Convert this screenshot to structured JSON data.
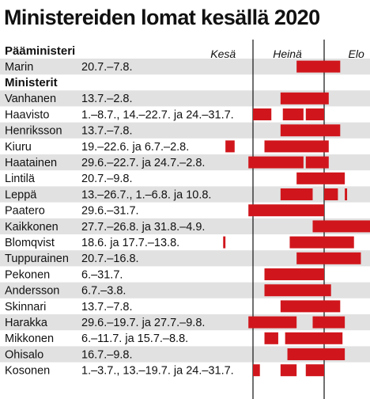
{
  "chart_data": {
    "type": "gantt",
    "title": "Ministereiden lomat kesällä 2020",
    "x_unit": "date",
    "x_range": [
      "2020-06-01",
      "2020-09-10"
    ],
    "month_labels": [
      {
        "label": "Kesä",
        "date": "2020-06-18"
      },
      {
        "label": "Heinä",
        "date": "2020-07-16"
      },
      {
        "label": "Elo",
        "date": "2020-08-15"
      }
    ],
    "month_boundaries": [
      "2020-07-01",
      "2020-08-01",
      "2020-09-01"
    ],
    "accent_color": "#d0161c",
    "row_shade_color": "#e1e1e1",
    "groups": [
      {
        "heading": "Pääministeri",
        "rows": [
          {
            "name": "Marin",
            "dates_text": "20.7.–7.8.",
            "shaded": true,
            "periods": [
              [
                "2020-07-20",
                "2020-08-07"
              ]
            ]
          }
        ]
      },
      {
        "heading": "Ministerit",
        "rows": [
          {
            "name": "Vanhanen",
            "dates_text": "13.7.–2.8.",
            "shaded": true,
            "periods": [
              [
                "2020-07-13",
                "2020-08-02"
              ]
            ]
          },
          {
            "name": "Haavisto",
            "dates_text": "1.–8.7., 14.–22.7. ja 24.–31.7.",
            "shaded": false,
            "periods": [
              [
                "2020-07-01",
                "2020-07-08"
              ],
              [
                "2020-07-14",
                "2020-07-22"
              ],
              [
                "2020-07-24",
                "2020-07-31"
              ]
            ]
          },
          {
            "name": "Henriksson",
            "dates_text": "13.7.–7.8.",
            "shaded": true,
            "periods": [
              [
                "2020-07-13",
                "2020-08-07"
              ]
            ]
          },
          {
            "name": "Kiuru",
            "dates_text": "19.–22.6. ja 6.7.–2.8.",
            "shaded": false,
            "periods": [
              [
                "2020-06-19",
                "2020-06-22"
              ],
              [
                "2020-07-06",
                "2020-08-02"
              ]
            ]
          },
          {
            "name": "Haatainen",
            "dates_text": "29.6.–22.7. ja 24.7.–2.8.",
            "shaded": true,
            "periods": [
              [
                "2020-06-29",
                "2020-07-22"
              ],
              [
                "2020-07-24",
                "2020-08-02"
              ]
            ]
          },
          {
            "name": "Lintilä",
            "dates_text": "20.7.–9.8.",
            "shaded": false,
            "periods": [
              [
                "2020-07-20",
                "2020-08-09"
              ]
            ]
          },
          {
            "name": "Leppä",
            "dates_text": "13.–26.7., 1.–6.8. ja 10.8.",
            "shaded": true,
            "periods": [
              [
                "2020-07-13",
                "2020-07-26"
              ],
              [
                "2020-08-01",
                "2020-08-06"
              ],
              [
                "2020-08-10",
                "2020-08-10"
              ]
            ]
          },
          {
            "name": "Paatero",
            "dates_text": "29.6.–31.7.",
            "shaded": false,
            "periods": [
              [
                "2020-06-29",
                "2020-07-31"
              ]
            ]
          },
          {
            "name": "Kaikkonen",
            "dates_text": "27.7.–26.8. ja 31.8.–4.9.",
            "shaded": true,
            "periods": [
              [
                "2020-07-27",
                "2020-08-26"
              ],
              [
                "2020-08-31",
                "2020-09-04"
              ]
            ]
          },
          {
            "name": "Blomqvist",
            "dates_text": "18.6. ja 17.7.–13.8.",
            "shaded": false,
            "periods": [
              [
                "2020-06-18",
                "2020-06-18"
              ],
              [
                "2020-07-17",
                "2020-08-13"
              ]
            ]
          },
          {
            "name": "Tuppurainen",
            "dates_text": "20.7.–16.8.",
            "shaded": true,
            "periods": [
              [
                "2020-07-20",
                "2020-08-16"
              ]
            ]
          },
          {
            "name": "Pekonen",
            "dates_text": "6.–31.7.",
            "shaded": false,
            "periods": [
              [
                "2020-07-06",
                "2020-07-31"
              ]
            ]
          },
          {
            "name": "Andersson",
            "dates_text": "6.7.–3.8.",
            "shaded": true,
            "periods": [
              [
                "2020-07-06",
                "2020-08-03"
              ]
            ]
          },
          {
            "name": "Skinnari",
            "dates_text": "13.7.–7.8.",
            "shaded": false,
            "periods": [
              [
                "2020-07-13",
                "2020-08-07"
              ]
            ]
          },
          {
            "name": "Harakka",
            "dates_text": "29.6.–19.7. ja 27.7.–9.8.",
            "shaded": true,
            "periods": [
              [
                "2020-06-29",
                "2020-07-19"
              ],
              [
                "2020-07-27",
                "2020-08-09"
              ]
            ]
          },
          {
            "name": "Mikkonen",
            "dates_text": "6.–11.7. ja 15.7.–8.8.",
            "shaded": false,
            "periods": [
              [
                "2020-07-06",
                "2020-07-11"
              ],
              [
                "2020-07-15",
                "2020-08-08"
              ]
            ]
          },
          {
            "name": "Ohisalo",
            "dates_text": "16.7.–9.8.",
            "shaded": true,
            "periods": [
              [
                "2020-07-16",
                "2020-08-09"
              ]
            ]
          },
          {
            "name": "Kosonen",
            "dates_text": "1.–3.7., 13.–19.7. ja 24.–31.7.",
            "shaded": false,
            "periods": [
              [
                "2020-07-01",
                "2020-07-03"
              ],
              [
                "2020-07-13",
                "2020-07-19"
              ],
              [
                "2020-07-24",
                "2020-07-31"
              ]
            ]
          }
        ]
      }
    ]
  }
}
